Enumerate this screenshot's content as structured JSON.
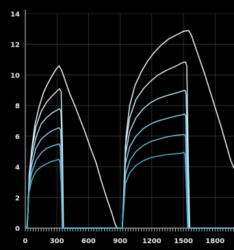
{
  "chart_data": {
    "type": "line",
    "title": "",
    "xlabel": "",
    "ylabel": "",
    "xlim": [
      0,
      1980
    ],
    "ylim": [
      0,
      14
    ],
    "grid": true,
    "x_ticks": [
      0,
      300,
      600,
      900,
      1200,
      1500,
      1800
    ],
    "y_ticks": [
      0,
      2,
      4,
      6,
      8,
      10,
      12,
      14
    ],
    "x_tick_labels": [
      "0",
      "300",
      "600",
      "900",
      "1200",
      "1500",
      "1800"
    ],
    "y_tick_labels": [
      "0",
      "2",
      "4",
      "6",
      "8",
      "10",
      "12",
      "14"
    ],
    "colors": {
      "background": "#000000",
      "envelope": "#e6eef2",
      "inner_series": [
        "#d9eef6",
        "#b9e2f0",
        "#8fd0e6",
        "#6ec0dc",
        "#55afcf"
      ],
      "grid": "#4a4a4a"
    },
    "series": [
      {
        "color": "#e6eef2",
        "points": [
          [
            0,
            0
          ],
          [
            15,
            0
          ],
          [
            25,
            1
          ],
          [
            40,
            3.6
          ],
          [
            60,
            5.1
          ],
          [
            90,
            6.7
          ],
          [
            130,
            7.9
          ],
          [
            170,
            8.8
          ],
          [
            210,
            9.4
          ],
          [
            250,
            9.9
          ],
          [
            290,
            10.35
          ],
          [
            320,
            10.6
          ],
          [
            345,
            10.3
          ],
          [
            380,
            9.6
          ],
          [
            420,
            8.8
          ],
          [
            470,
            8.0
          ],
          [
            520,
            7.1
          ],
          [
            570,
            6.2
          ],
          [
            620,
            5.2
          ],
          [
            670,
            4.3
          ],
          [
            720,
            3.1
          ],
          [
            770,
            2.0
          ],
          [
            820,
            1.0
          ],
          [
            850,
            0.3
          ],
          [
            870,
            0
          ],
          [
            920,
            0
          ],
          [
            935,
            2.0
          ],
          [
            955,
            5.9
          ],
          [
            990,
            8.0
          ],
          [
            1040,
            9.3
          ],
          [
            1100,
            10.2
          ],
          [
            1160,
            10.9
          ],
          [
            1220,
            11.45
          ],
          [
            1290,
            11.95
          ],
          [
            1360,
            12.35
          ],
          [
            1430,
            12.6
          ],
          [
            1500,
            12.85
          ],
          [
            1550,
            12.9
          ],
          [
            1575,
            12.6
          ],
          [
            1610,
            11.9
          ],
          [
            1650,
            11.1
          ],
          [
            1700,
            10.1
          ],
          [
            1750,
            9.0
          ],
          [
            1800,
            7.9
          ],
          [
            1850,
            6.8
          ],
          [
            1900,
            5.6
          ],
          [
            1950,
            4.4
          ],
          [
            1980,
            3.9
          ]
        ]
      },
      {
        "color": "#d9eef6",
        "points": [
          [
            0,
            0
          ],
          [
            18,
            0
          ],
          [
            25,
            1
          ],
          [
            35,
            3.4
          ],
          [
            60,
            5.0
          ],
          [
            100,
            6.6
          ],
          [
            150,
            7.6
          ],
          [
            200,
            8.2
          ],
          [
            250,
            8.6
          ],
          [
            300,
            8.95
          ],
          [
            325,
            9.1
          ],
          [
            340,
            8.9
          ],
          [
            352,
            5.5
          ],
          [
            362,
            0
          ],
          [
            920,
            0
          ],
          [
            932,
            2.0
          ],
          [
            950,
            5.4
          ],
          [
            990,
            7.2
          ],
          [
            1050,
            8.4
          ],
          [
            1120,
            9.1
          ],
          [
            1190,
            9.6
          ],
          [
            1260,
            10.0
          ],
          [
            1340,
            10.3
          ],
          [
            1420,
            10.55
          ],
          [
            1490,
            10.8
          ],
          [
            1520,
            10.85
          ],
          [
            1532,
            10.6
          ],
          [
            1545,
            5.0
          ],
          [
            1560,
            0
          ],
          [
            1980,
            0
          ]
        ]
      },
      {
        "color": "#b9e2f0",
        "points": [
          [
            0,
            0
          ],
          [
            18,
            0
          ],
          [
            25,
            1
          ],
          [
            35,
            3.2
          ],
          [
            60,
            4.6
          ],
          [
            100,
            5.9
          ],
          [
            150,
            6.8
          ],
          [
            200,
            7.2
          ],
          [
            250,
            7.5
          ],
          [
            300,
            7.7
          ],
          [
            325,
            7.8
          ],
          [
            338,
            7.6
          ],
          [
            350,
            4.8
          ],
          [
            360,
            0
          ],
          [
            920,
            0
          ],
          [
            932,
            1.8
          ],
          [
            950,
            4.8
          ],
          [
            990,
            6.3
          ],
          [
            1050,
            7.2
          ],
          [
            1120,
            7.8
          ],
          [
            1190,
            8.2
          ],
          [
            1260,
            8.45
          ],
          [
            1340,
            8.65
          ],
          [
            1420,
            8.8
          ],
          [
            1490,
            8.95
          ],
          [
            1515,
            9.0
          ],
          [
            1525,
            8.8
          ],
          [
            1540,
            4.5
          ],
          [
            1552,
            0
          ],
          [
            1980,
            0
          ]
        ]
      },
      {
        "color": "#8fd0e6",
        "points": [
          [
            0,
            0
          ],
          [
            18,
            0
          ],
          [
            25,
            1
          ],
          [
            35,
            3.0
          ],
          [
            60,
            4.1
          ],
          [
            100,
            5.2
          ],
          [
            150,
            5.8
          ],
          [
            200,
            6.1
          ],
          [
            250,
            6.35
          ],
          [
            300,
            6.5
          ],
          [
            322,
            6.55
          ],
          [
            335,
            6.4
          ],
          [
            345,
            4.0
          ],
          [
            355,
            0
          ],
          [
            920,
            0
          ],
          [
            932,
            1.5
          ],
          [
            950,
            4.2
          ],
          [
            990,
            5.3
          ],
          [
            1050,
            6.0
          ],
          [
            1120,
            6.5
          ],
          [
            1190,
            6.8
          ],
          [
            1260,
            7.0
          ],
          [
            1340,
            7.15
          ],
          [
            1420,
            7.3
          ],
          [
            1490,
            7.4
          ],
          [
            1510,
            7.45
          ],
          [
            1522,
            7.3
          ],
          [
            1535,
            3.8
          ],
          [
            1548,
            0
          ],
          [
            1980,
            0
          ]
        ]
      },
      {
        "color": "#6ec0dc",
        "points": [
          [
            0,
            0
          ],
          [
            18,
            0
          ],
          [
            25,
            1
          ],
          [
            35,
            2.6
          ],
          [
            60,
            3.6
          ],
          [
            100,
            4.4
          ],
          [
            150,
            4.9
          ],
          [
            200,
            5.2
          ],
          [
            250,
            5.35
          ],
          [
            300,
            5.45
          ],
          [
            320,
            5.5
          ],
          [
            332,
            5.3
          ],
          [
            342,
            3.4
          ],
          [
            352,
            0
          ],
          [
            920,
            0
          ],
          [
            932,
            1.3
          ],
          [
            950,
            3.5
          ],
          [
            990,
            4.4
          ],
          [
            1050,
            5.0
          ],
          [
            1120,
            5.4
          ],
          [
            1190,
            5.65
          ],
          [
            1260,
            5.8
          ],
          [
            1340,
            5.95
          ],
          [
            1420,
            6.05
          ],
          [
            1490,
            6.1
          ],
          [
            1510,
            6.1
          ],
          [
            1520,
            6.0
          ],
          [
            1532,
            3.2
          ],
          [
            1545,
            0
          ],
          [
            1980,
            0
          ]
        ]
      },
      {
        "color": "#55afcf",
        "points": [
          [
            0,
            0
          ],
          [
            18,
            0
          ],
          [
            25,
            1
          ],
          [
            35,
            2.3
          ],
          [
            60,
            3.1
          ],
          [
            100,
            3.7
          ],
          [
            150,
            4.0
          ],
          [
            200,
            4.2
          ],
          [
            250,
            4.35
          ],
          [
            300,
            4.45
          ],
          [
            318,
            4.5
          ],
          [
            330,
            4.3
          ],
          [
            340,
            2.8
          ],
          [
            350,
            0
          ],
          [
            920,
            0
          ],
          [
            932,
            1.1
          ],
          [
            950,
            2.9
          ],
          [
            990,
            3.6
          ],
          [
            1050,
            4.1
          ],
          [
            1120,
            4.4
          ],
          [
            1190,
            4.6
          ],
          [
            1260,
            4.7
          ],
          [
            1340,
            4.8
          ],
          [
            1420,
            4.85
          ],
          [
            1490,
            4.9
          ],
          [
            1505,
            4.95
          ],
          [
            1515,
            4.8
          ],
          [
            1528,
            2.6
          ],
          [
            1540,
            0
          ],
          [
            1980,
            0
          ]
        ]
      }
    ]
  }
}
